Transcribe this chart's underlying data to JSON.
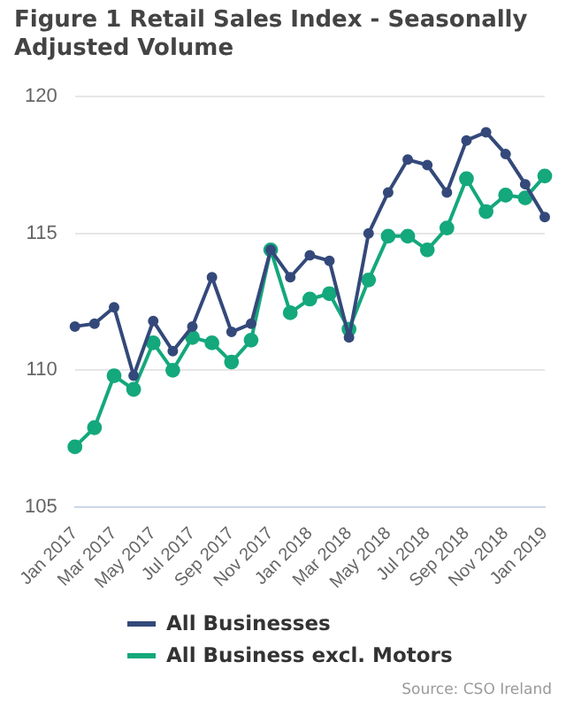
{
  "chart_data": {
    "type": "line",
    "title": "Figure 1 Retail Sales Index - Seasonally Adjusted Volume",
    "categories": [
      "Jan 2017",
      null,
      "Mar 2017",
      null,
      "May 2017",
      null,
      "Jul 2017",
      null,
      "Sep 2017",
      null,
      "Nov 2017",
      null,
      "Jan 2018",
      null,
      "Mar 2018",
      null,
      "May 2018",
      null,
      "Jul 2018",
      null,
      "Sep 2018",
      null,
      "Nov 2018",
      null,
      "Jan 2019"
    ],
    "series": [
      {
        "name": "All Businesses",
        "color": "#34497a",
        "values": [
          111.6,
          111.7,
          112.3,
          109.8,
          111.8,
          110.7,
          111.6,
          113.4,
          111.4,
          111.7,
          114.4,
          113.4,
          114.2,
          114.0,
          111.2,
          115.0,
          116.5,
          117.7,
          117.5,
          116.5,
          118.4,
          118.7,
          117.9,
          116.8,
          115.6
        ]
      },
      {
        "name": "All Business excl. Motors",
        "color": "#14a87c",
        "values": [
          107.2,
          107.9,
          109.8,
          109.3,
          111.0,
          110.0,
          111.2,
          111.0,
          110.3,
          111.1,
          114.4,
          112.1,
          112.6,
          112.8,
          111.5,
          113.3,
          114.9,
          114.9,
          114.4,
          115.2,
          117.0,
          115.8,
          116.4,
          116.3,
          117.1
        ]
      }
    ],
    "ylim": [
      105,
      120
    ],
    "yticks": [
      105,
      110,
      115,
      120
    ],
    "grid": "y",
    "legend": "bottom",
    "marker": "circle",
    "line_style": "solid",
    "annotations": [
      "Source: CSO Ireland"
    ]
  }
}
